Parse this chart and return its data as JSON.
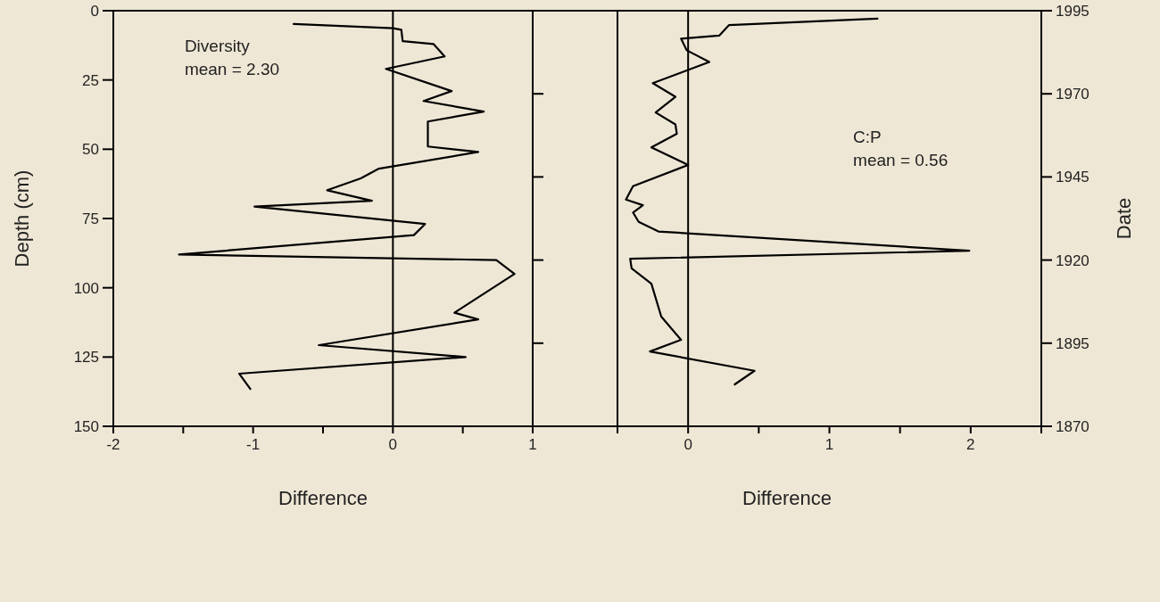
{
  "chart_data": [
    {
      "type": "line",
      "xlabel": "Difference",
      "ylabel": "Depth (cm)",
      "annotations": [
        "Diversity",
        "mean = 2.30"
      ],
      "xlim": [
        -2,
        1
      ],
      "xticks": [
        -2,
        {
          "value": -1.5,
          "label": null
        },
        -1,
        {
          "value": -0.5,
          "label": null
        },
        0,
        {
          "value": 0.5,
          "label": null
        },
        1
      ],
      "ylim": [
        150,
        0
      ],
      "yticks": [
        0,
        25,
        50,
        75,
        100,
        125,
        150
      ],
      "ref_lines": [
        {
          "axis": "x",
          "value": 0,
          "color": "#000000"
        }
      ],
      "series": [
        {
          "color": "#000000",
          "x": [
            -0.71,
            0,
            0.06,
            0.07,
            0.29,
            0.37,
            -0.05,
            0.42,
            0.22,
            0.65,
            0.25,
            0.25,
            0.61,
            -0.1,
            -0.23,
            -0.47,
            -0.15,
            -0.99,
            0.23,
            0.15,
            -1.53,
            0.74,
            0.87,
            0.44,
            0.61,
            -0.53,
            0.52,
            -1.1,
            -1.02
          ],
          "values": [
            4.8,
            6.3,
            6.9,
            11,
            12,
            16.5,
            21,
            29,
            32.6,
            36.4,
            40,
            49,
            51,
            57,
            60.5,
            64.8,
            68.6,
            70.7,
            77,
            81,
            88,
            90,
            95,
            109,
            111.4,
            120.7,
            125,
            131,
            136.5
          ]
        }
      ]
    },
    {
      "type": "line",
      "xlabel": "Difference",
      "y2label": "Date",
      "annotations": [
        "C:P",
        "mean = 0.56"
      ],
      "xlim": [
        -1.1,
        2.5
      ],
      "xticks": [
        {
          "value": -0.5,
          "label": null
        },
        0,
        {
          "value": 0.5,
          "label": null
        },
        1,
        {
          "value": 1.5,
          "label": null
        },
        2,
        {
          "value": 2.5,
          "label": null
        }
      ],
      "y2lim": [
        1870,
        1995
      ],
      "y2ticks": [
        1870,
        1895,
        1920,
        1945,
        1970,
        1995
      ],
      "ref_lines": [
        {
          "axis": "x",
          "value": -0.5,
          "color": "#000000"
        },
        {
          "axis": "x",
          "value": 0,
          "color": "#000000"
        }
      ],
      "series": [
        {
          "axis": "y2",
          "color": "#000000",
          "x": [
            1.34,
            0.29,
            0.22,
            -0.05,
            -0.01,
            0.15,
            -0.25,
            -0.09,
            -0.23,
            -0.09,
            -0.08,
            -0.26,
            0,
            -0.39,
            -0.44,
            -0.32,
            -0.39,
            -0.35,
            -0.21,
            1.99,
            -0.41,
            -0.4,
            -0.26,
            -0.19,
            -0.05,
            -0.27,
            0.47,
            0.33
          ],
          "values": [
            1992.6,
            1990.7,
            1987.5,
            1986.6,
            1983.1,
            1979.6,
            1973.2,
            1969.1,
            1964.4,
            1960.8,
            1958.0,
            1953.9,
            1948.6,
            1942.2,
            1938.2,
            1936.5,
            1934.3,
            1931.5,
            1928.6,
            1922.8,
            1920.4,
            1917.5,
            1912.9,
            1903.0,
            1896.0,
            1892.5,
            1886.7,
            1882.6
          ]
        }
      ]
    }
  ]
}
